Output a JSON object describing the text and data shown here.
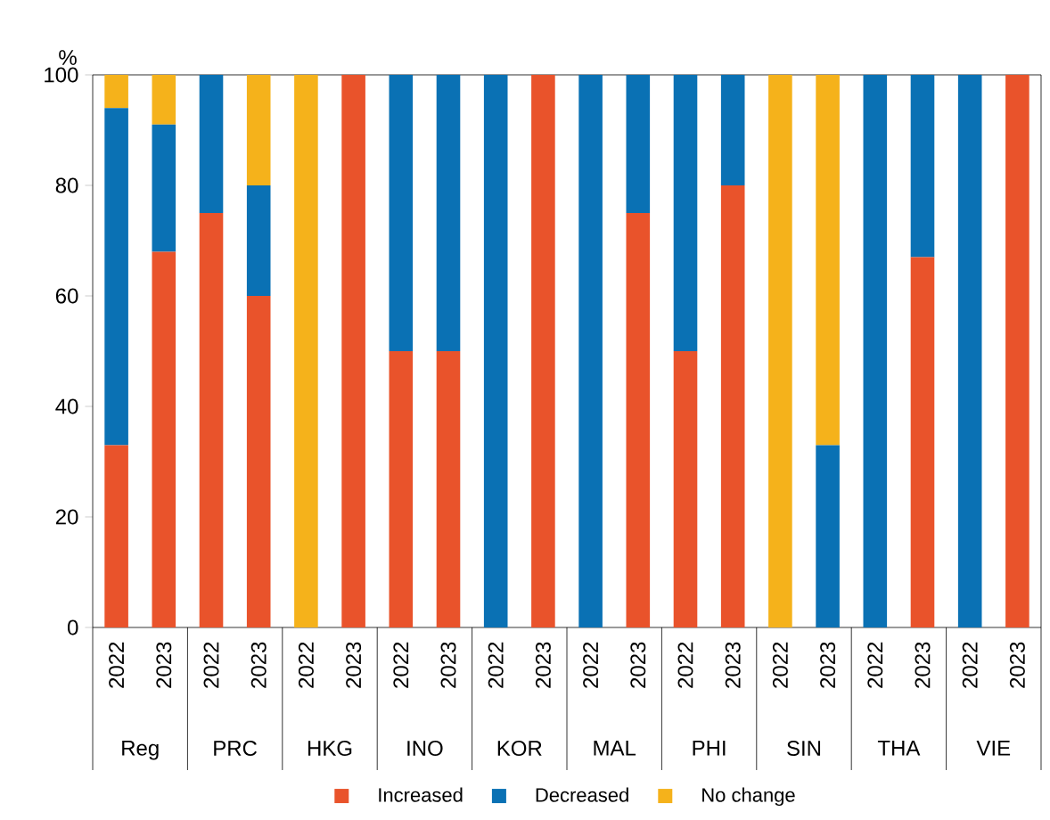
{
  "chart_data": {
    "type": "bar",
    "stacked": true,
    "ylabel": "%",
    "categories": [
      "2022",
      "2023",
      "2022",
      "2023",
      "2022",
      "2023",
      "2022",
      "2023",
      "2022",
      "2023",
      "2022",
      "2023",
      "2022",
      "2023",
      "2022",
      "2023",
      "2022",
      "2023",
      "2022",
      "2023"
    ],
    "annotations": [
      "Reg",
      "PRC",
      "HKG",
      "INO",
      "KOR",
      "MAL",
      "PHI",
      "SIN",
      "THA",
      "VIE"
    ],
    "series": [
      {
        "name": "Increased",
        "color": "#e9532b",
        "values": [
          33,
          68,
          75,
          60,
          0,
          100,
          50,
          50,
          0,
          100,
          0,
          75,
          50,
          80,
          0,
          0,
          0,
          67,
          0,
          100
        ]
      },
      {
        "name": "Decreased",
        "color": "#0a71b4",
        "values": [
          61,
          23,
          25,
          20,
          0,
          0,
          50,
          50,
          100,
          0,
          100,
          25,
          50,
          20,
          0,
          33,
          100,
          33,
          100,
          0
        ]
      },
      {
        "name": "No change",
        "color": "#f5b21b",
        "values": [
          6,
          9,
          0,
          20,
          100,
          0,
          0,
          0,
          0,
          0,
          0,
          0,
          0,
          0,
          100,
          67,
          0,
          0,
          0,
          0
        ]
      }
    ],
    "ylim": [
      0,
      100
    ],
    "yticks": [
      0,
      20,
      40,
      60,
      80,
      100
    ],
    "legend": "bottom"
  }
}
